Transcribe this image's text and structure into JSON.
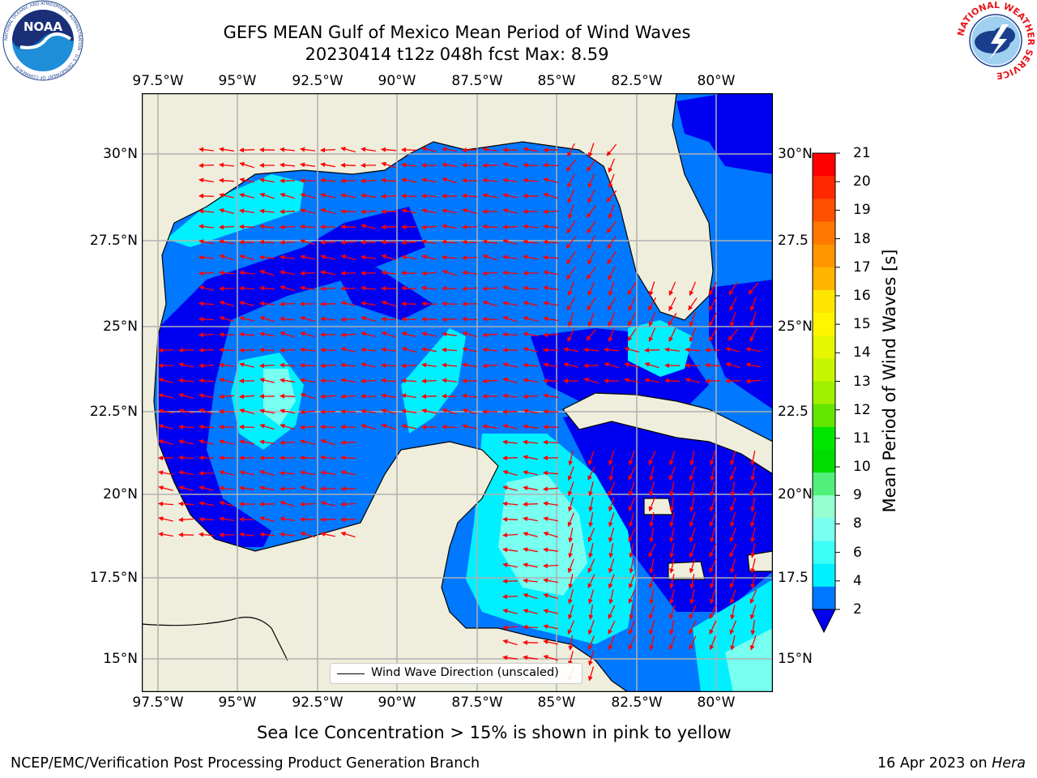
{
  "title": {
    "line1": "GEFS MEAN Gulf of Mexico Mean Period of Wind Waves",
    "line2": "20230414 t12z 048h fcst   Max: 8.59"
  },
  "map": {
    "lon_ticks": [
      "97.5°W",
      "95°W",
      "92.5°W",
      "90°W",
      "87.5°W",
      "85°W",
      "82.5°W",
      "80°W"
    ],
    "lat_ticks_left": [
      "30°N",
      "27.5°N",
      "25°N",
      "22.5°N",
      "20°N",
      "17.5°N",
      "15°N"
    ],
    "lat_ticks_right": [
      "30°N",
      "27.5",
      "25°N",
      "22.5",
      "20°N",
      "17.5",
      "15°N"
    ],
    "legend_label": "Wind Wave Direction (unscaled)",
    "land_color": "#efeedc",
    "coast_color": "#000000"
  },
  "colorbar": {
    "title": "Mean Period of Wind Waves [s]",
    "labels": [
      "21",
      "20",
      "19",
      "18",
      "17",
      "16",
      "15",
      "14",
      "13",
      "12",
      "11",
      "10",
      "9",
      "8",
      "6",
      "4",
      "2"
    ],
    "colors_top_to_bottom": [
      "#ff0000",
      "#ff2800",
      "#ff5000",
      "#ff7800",
      "#ff9600",
      "#ffb400",
      "#ffe600",
      "#fff500",
      "#e6f500",
      "#c8f500",
      "#a0f000",
      "#64e600",
      "#00e600",
      "#00dc00",
      "#50f07a",
      "#96ffd2",
      "#78fff0",
      "#3cfff5",
      "#00f0ff",
      "#0078ff"
    ],
    "extend_color": "#0000f0"
  },
  "note": "Sea Ice Concentration > 15% is shown in pink to yellow",
  "footer": {
    "left": "NCEP/EMC/Verification Post Processing Product Generation Branch",
    "date": "16 Apr 2023 on ",
    "host": "Hera"
  },
  "logos": {
    "noaa_text": "NOAA",
    "noaa_ring": "NATIONAL OCEANIC AND ATMOSPHERIC ADMINISTRATION · U.S. DEPARTMENT OF COMMERCE",
    "nws_ring": "NATIONAL WEATHER SERVICE"
  }
}
